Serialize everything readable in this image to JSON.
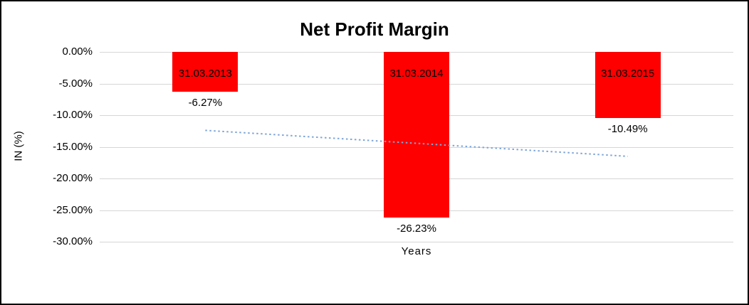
{
  "chart_data": {
    "type": "bar",
    "title": "Net Profit Margin",
    "xlabel": "Years",
    "ylabel": "IN (%)",
    "categories": [
      "31.03.2013",
      "31.03.2014",
      "31.03.2015"
    ],
    "values": [
      -6.27,
      -26.23,
      -10.49
    ],
    "value_labels": [
      "-6.27%",
      "-26.23%",
      "-10.49%"
    ],
    "ylim": [
      -30,
      0
    ],
    "yticks": [
      {
        "label": "0.00%",
        "value": 0
      },
      {
        "label": "-5.00%",
        "value": -5
      },
      {
        "label": "-10.00%",
        "value": -10
      },
      {
        "label": "-15.00%",
        "value": -15
      },
      {
        "label": "-20.00%",
        "value": -20
      },
      {
        "label": "-25.00%",
        "value": -25
      },
      {
        "label": "-30.00%",
        "value": -30
      }
    ],
    "grid": true,
    "legend": "none",
    "bar_color": "#FE0000",
    "trendline": {
      "type": "linear-dotted",
      "color": "#7EA6D9",
      "points": [
        {
          "category_index": 0,
          "value": -12.4
        },
        {
          "category_index": 2,
          "value": -16.5
        }
      ]
    }
  }
}
